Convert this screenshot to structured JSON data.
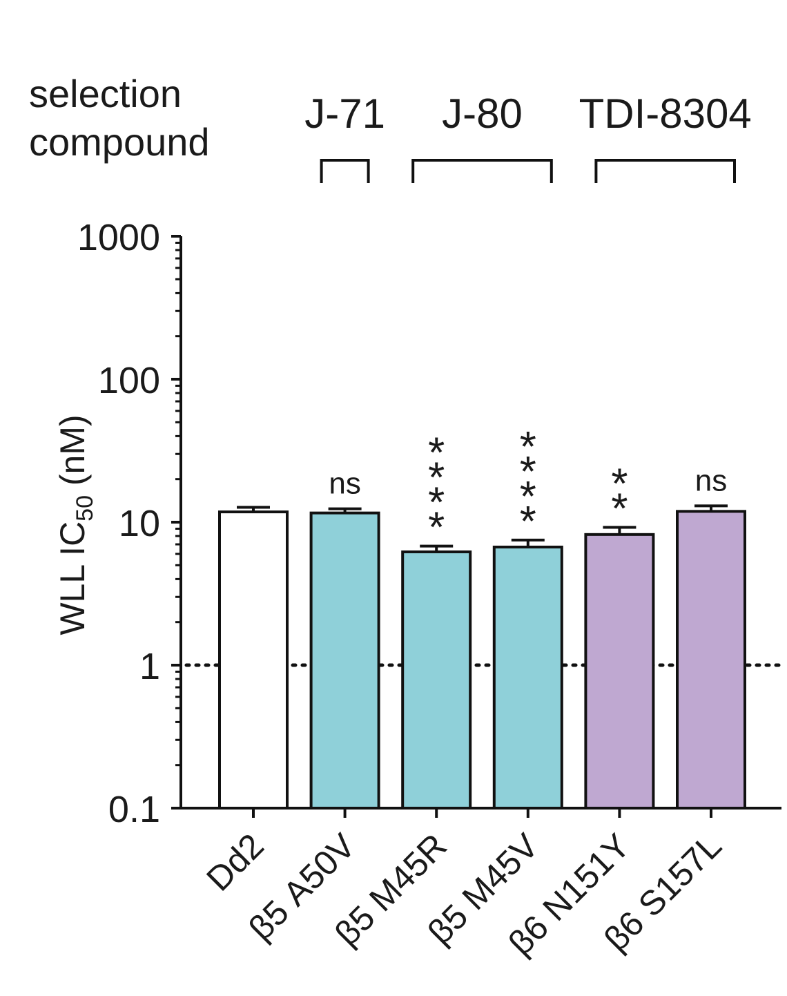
{
  "chart_data": {
    "type": "bar",
    "ylabel_main": "WLL IC",
    "ylabel_sub": "50",
    "ylabel_unit": " (nM)",
    "yscale": "log",
    "ylim": [
      0.1,
      1000
    ],
    "yticks": [
      0.1,
      1,
      10,
      100,
      1000
    ],
    "ytick_labels": [
      "0.1",
      "1",
      "10",
      "100",
      "1000"
    ],
    "reference_line": 1,
    "categories": [
      "Dd2",
      "β5 A50V",
      "β5 M45R",
      "β5 M45V",
      "β6 N151Y",
      "β6 S157L"
    ],
    "values": [
      11.8,
      11.6,
      6.2,
      6.7,
      8.2,
      11.9
    ],
    "errors": [
      0.9,
      0.8,
      0.6,
      0.8,
      1.0,
      1.1
    ],
    "colors": [
      "#ffffff",
      "#8fd0d9",
      "#8fd0d9",
      "#8fd0d9",
      "#bfa8d1",
      "#bfa8d1"
    ],
    "significance": [
      "",
      "ns",
      "****",
      "****",
      "**",
      "ns"
    ],
    "selection_label_line1": "selection",
    "selection_label_line2": "compound",
    "groups": [
      {
        "label": "J-71",
        "from": 1,
        "to": 1
      },
      {
        "label": "J-80",
        "from": 2,
        "to": 3
      },
      {
        "label": "TDI-8304",
        "from": 4,
        "to": 5
      }
    ]
  }
}
